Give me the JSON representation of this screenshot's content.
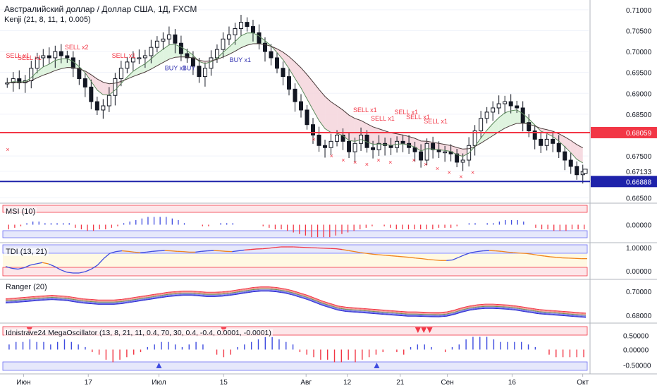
{
  "header": {
    "title": "Австралийский доллар / Доллар США, 1Д, FXCM",
    "subtitle": "Kenji (21, 8, 11, 1, 0.005)"
  },
  "chart_data": {
    "type": "candlestick",
    "main": {
      "ylim": [
        0.6642,
        0.7115
      ],
      "price_ticks": [
        "0.71000",
        "0.70500",
        "0.70000",
        "0.69500",
        "0.69000",
        "0.68500",
        "0.67500",
        "0.67133",
        "0.66500"
      ],
      "horizontal_lines": [
        {
          "value": 0.68059,
          "label": "0.68059",
          "color": "#f23645"
        },
        {
          "value": 0.66888,
          "label": "0.66888",
          "color": "#1e22aa"
        }
      ],
      "current_price": 0.67133,
      "candles_close": [
        0.6925,
        0.6935,
        0.6925,
        0.693,
        0.696,
        0.6985,
        0.699,
        0.6985,
        0.7,
        0.699,
        0.6985,
        0.696,
        0.6935,
        0.6915,
        0.688,
        0.686,
        0.687,
        0.6895,
        0.6935,
        0.696,
        0.6975,
        0.6985,
        0.6985,
        0.699,
        0.701,
        0.7025,
        0.703,
        0.704,
        0.702,
        0.6995,
        0.6985,
        0.6965,
        0.694,
        0.696,
        0.6985,
        0.7005,
        0.703,
        0.704,
        0.7055,
        0.707,
        0.706,
        0.7045,
        0.702,
        0.7,
        0.6985,
        0.696,
        0.694,
        0.691,
        0.688,
        0.686,
        0.6825,
        0.68,
        0.6775,
        0.677,
        0.6785,
        0.68,
        0.6785,
        0.676,
        0.678,
        0.68,
        0.677,
        0.6765,
        0.678,
        0.6775,
        0.677,
        0.6785,
        0.678,
        0.677,
        0.676,
        0.674,
        0.678,
        0.6765,
        0.676,
        0.676,
        0.6755,
        0.6735,
        0.674,
        0.6775,
        0.681,
        0.684,
        0.6855,
        0.6865,
        0.6875,
        0.688,
        0.687,
        0.6865,
        0.683,
        0.681,
        0.679,
        0.6775,
        0.679,
        0.678,
        0.676,
        0.674,
        0.6725,
        0.6705,
        0.6713
      ],
      "signals": [
        "SELL x1",
        "SELL x1",
        "SELL x2",
        "SELL x1",
        "BUY x1",
        "BUY",
        "BUY x1",
        "SELL x1",
        "SELL x1",
        "SELL x1",
        "SELL x1",
        "SELL x1"
      ],
      "axis_ticks": [
        "Июн",
        "17",
        "Июл",
        "15",
        "Авг",
        "12",
        "21",
        "Сен",
        "16",
        "Окт"
      ]
    },
    "msi": {
      "title": "MSI (10)",
      "tick": "0.00000",
      "values": [
        -0.3,
        -0.2,
        -0.1,
        0.1,
        0.2,
        0.2,
        0.1,
        0.1,
        0.1,
        0.1,
        0.1,
        -0.2,
        -0.3,
        -0.4,
        -0.4,
        -0.3,
        -0.3,
        -0.2,
        -0.1,
        0.1,
        0.2,
        0.3,
        0.4,
        0.5,
        0.5,
        0.5,
        0.5,
        0.4,
        0.3,
        0.1,
        0.0,
        0.0,
        -0.1,
        -0.1,
        0.0,
        0.1,
        0.1,
        0.1,
        0.0,
        0.0,
        0.0,
        0.0,
        -0.1,
        -0.2,
        -0.3,
        -0.3,
        -0.4,
        -0.5,
        -0.6,
        -0.7,
        -0.8,
        -0.8,
        -0.8,
        -0.8,
        -0.7,
        -0.6,
        -0.5,
        -0.4,
        -0.3,
        -0.2,
        -0.1,
        0.0,
        -0.1,
        -0.2,
        -0.3,
        -0.3,
        -0.3,
        -0.3,
        -0.3,
        -0.3,
        -0.3,
        -0.2,
        -0.2,
        -0.2,
        -0.1,
        0.0,
        0.1,
        0.1,
        0.0,
        0.1,
        0.1,
        0.2,
        0.3,
        0.3,
        0.3,
        0.2,
        0.0,
        -0.2,
        -0.3,
        -0.3,
        -0.4,
        -0.4,
        -0.4,
        -0.3,
        -0.3,
        -0.3
      ]
    },
    "tdi": {
      "title": "TDI (13, 21)",
      "ticks": [
        "1.00000",
        "0.00000"
      ],
      "values": [
        0.25,
        0.18,
        0.15,
        0.2,
        0.3,
        0.35,
        0.4,
        0.35,
        0.25,
        0.12,
        0.03,
        0.0,
        0.0,
        0.05,
        0.15,
        0.3,
        0.55,
        0.75,
        0.82,
        0.85,
        0.83,
        0.8,
        0.78,
        0.8,
        0.83,
        0.85,
        0.86,
        0.85,
        0.83,
        0.82,
        0.8,
        0.8,
        0.83,
        0.85,
        0.86,
        0.85,
        0.83,
        0.82,
        0.85,
        0.88,
        0.9,
        0.92,
        0.93,
        0.95,
        0.98,
        1.0,
        1.0,
        1.0,
        0.99,
        0.98,
        0.97,
        0.96,
        0.95,
        0.94,
        0.93,
        0.9,
        0.86,
        0.82,
        0.78,
        0.75,
        0.72,
        0.7,
        0.68,
        0.66,
        0.64,
        0.62,
        0.6,
        0.57,
        0.55,
        0.52,
        0.5,
        0.48,
        0.48,
        0.5,
        0.6,
        0.7,
        0.78,
        0.82,
        0.85,
        0.86,
        0.85,
        0.83,
        0.8,
        0.78,
        0.76,
        0.75,
        0.72,
        0.68,
        0.65,
        0.62,
        0.6,
        0.58,
        0.57,
        0.56,
        0.55,
        0.55
      ]
    },
    "ranger": {
      "title": "Ranger (20)",
      "ticks": [
        "0.70000",
        "0.68000"
      ],
      "mid": [
        0.692,
        0.6925,
        0.693,
        0.6935,
        0.694,
        0.6945,
        0.695,
        0.6945,
        0.694,
        0.693,
        0.692,
        0.6915,
        0.691,
        0.691,
        0.691,
        0.6915,
        0.6925,
        0.6935,
        0.6945,
        0.6955,
        0.6965,
        0.6975,
        0.698,
        0.6985,
        0.6985,
        0.698,
        0.6975,
        0.6975,
        0.6978,
        0.6985,
        0.6995,
        0.7005,
        0.7015,
        0.702,
        0.702,
        0.7015,
        0.7005,
        0.699,
        0.697,
        0.695,
        0.6925,
        0.69,
        0.688,
        0.686,
        0.685,
        0.6845,
        0.684,
        0.6835,
        0.683,
        0.6825,
        0.682,
        0.6815,
        0.681,
        0.681,
        0.6808,
        0.6806,
        0.6805,
        0.681,
        0.6825,
        0.6845,
        0.686,
        0.687,
        0.6875,
        0.6875,
        0.6872,
        0.6868,
        0.686,
        0.685,
        0.684,
        0.683,
        0.6825,
        0.682,
        0.6815,
        0.681,
        0.6805,
        0.68
      ]
    },
    "oscillator": {
      "title": "Idnistrave24 MegaOscillator (13, 8, 21, 11, 0.4, 70, 30, 0.4, -0.4, 0.0001, -0.0001)",
      "ticks": [
        "0.50000",
        "0.00000",
        "-0.50000"
      ],
      "values": [
        0.2,
        0.3,
        0.3,
        0.4,
        0.3,
        0.3,
        0.2,
        0.3,
        0.4,
        0.3,
        0.2,
        0.1,
        -0.1,
        -0.2,
        -0.4,
        -0.5,
        -0.4,
        -0.3,
        -0.2,
        -0.1,
        0.1,
        0.2,
        0.3,
        0.3,
        0.2,
        0.1,
        0.2,
        0.3,
        0.2,
        0.0,
        -0.2,
        -0.3,
        -0.2,
        0.1,
        0.2,
        0.3,
        0.4,
        0.5,
        0.5,
        0.4,
        0.3,
        0.2,
        -0.1,
        -0.2,
        -0.3,
        -0.4,
        -0.4,
        -0.5,
        -0.5,
        -0.4,
        -0.5,
        -0.4,
        -0.3,
        -0.2,
        -0.1,
        0.0,
        -0.1,
        -0.2,
        0.1,
        0.2,
        0.2,
        0.1,
        0.0,
        -0.1,
        0.1,
        0.2,
        0.4,
        0.5,
        0.5,
        0.5,
        0.4,
        0.3,
        0.3,
        0.3,
        0.3,
        0.2,
        0.1,
        0.0,
        -0.2,
        -0.3,
        -0.3,
        -0.3,
        -0.3,
        -0.3
      ],
      "triangles_up": [
        0.27,
        0.64
      ],
      "triangles_down": [
        0.05,
        0.38,
        0.71,
        0.72,
        0.73
      ]
    }
  }
}
